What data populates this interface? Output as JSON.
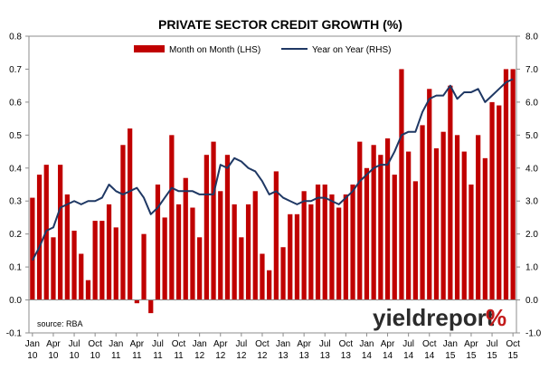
{
  "chart_data": {
    "type": "bar",
    "title": "PRIVATE SECTOR CREDIT GROWTH (%)",
    "source": "source: RBA",
    "legend_position": "top",
    "grid": false,
    "colors": {
      "bar": "#c00000",
      "line": "#1f3864"
    },
    "x_ticks": [
      {
        "label": "Jan",
        "year": "10"
      },
      {
        "label": "Apr",
        "year": "10"
      },
      {
        "label": "Jul",
        "year": "10"
      },
      {
        "label": "Oct",
        "year": "10"
      },
      {
        "label": "Jan",
        "year": "11"
      },
      {
        "label": "Apr",
        "year": "11"
      },
      {
        "label": "Jul",
        "year": "11"
      },
      {
        "label": "Oct",
        "year": "11"
      },
      {
        "label": "Jan",
        "year": "12"
      },
      {
        "label": "Apr",
        "year": "12"
      },
      {
        "label": "Jul",
        "year": "12"
      },
      {
        "label": "Oct",
        "year": "12"
      },
      {
        "label": "Jan",
        "year": "13"
      },
      {
        "label": "Apr",
        "year": "13"
      },
      {
        "label": "Jul",
        "year": "13"
      },
      {
        "label": "Oct",
        "year": "13"
      },
      {
        "label": "Jan",
        "year": "14"
      },
      {
        "label": "Apr",
        "year": "14"
      },
      {
        "label": "Jul",
        "year": "14"
      },
      {
        "label": "Oct",
        "year": "14"
      },
      {
        "label": "Jan",
        "year": "15"
      },
      {
        "label": "Apr",
        "year": "15"
      },
      {
        "label": "Jul",
        "year": "15"
      },
      {
        "label": "Oct",
        "year": "15"
      }
    ],
    "y_left": {
      "ylim": [
        -0.1,
        0.8
      ],
      "ticks": [
        "-0.1",
        "0.0",
        "0.1",
        "0.2",
        "0.3",
        "0.4",
        "0.5",
        "0.6",
        "0.7",
        "0.8"
      ]
    },
    "y_right": {
      "ylim": [
        -1.0,
        8.0
      ],
      "ticks": [
        "-1.0",
        "0.0",
        "1.0",
        "2.0",
        "3.0",
        "4.0",
        "5.0",
        "6.0",
        "7.0",
        "8.0"
      ]
    },
    "series": [
      {
        "name": "Month on Month (LHS)",
        "type": "bar",
        "axis": "left",
        "values": [
          0.31,
          0.38,
          0.41,
          0.19,
          0.41,
          0.32,
          0.21,
          0.14,
          0.06,
          0.24,
          0.24,
          0.29,
          0.22,
          0.47,
          0.52,
          -0.01,
          0.2,
          -0.04,
          0.35,
          0.25,
          0.5,
          0.29,
          0.37,
          0.28,
          0.19,
          0.44,
          0.48,
          0.33,
          0.44,
          0.29,
          0.19,
          0.29,
          0.33,
          0.14,
          0.09,
          0.39,
          0.16,
          0.26,
          0.26,
          0.33,
          0.29,
          0.35,
          0.35,
          0.32,
          0.28,
          0.32,
          0.35,
          0.48,
          0.4,
          0.47,
          0.44,
          0.49,
          0.38,
          0.7,
          0.45,
          0.36,
          0.53,
          0.64,
          0.46,
          0.51,
          0.65,
          0.5,
          0.45,
          0.35,
          0.5,
          0.43,
          0.6,
          0.59,
          0.7,
          0.7
        ]
      },
      {
        "name": "Year on Year (RHS)",
        "type": "line",
        "axis": "right",
        "values": [
          1.2,
          1.6,
          2.1,
          2.2,
          2.8,
          2.9,
          3.0,
          2.9,
          3.0,
          3.0,
          3.1,
          3.5,
          3.3,
          3.2,
          3.3,
          3.4,
          3.1,
          2.6,
          2.8,
          3.1,
          3.4,
          3.3,
          3.3,
          3.3,
          3.2,
          3.2,
          3.2,
          4.1,
          4.0,
          4.3,
          4.2,
          4.0,
          3.9,
          3.6,
          3.2,
          3.3,
          3.1,
          3.0,
          2.9,
          3.0,
          3.0,
          3.1,
          3.1,
          3.0,
          2.9,
          3.1,
          3.3,
          3.6,
          3.8,
          4.0,
          4.1,
          4.1,
          4.5,
          5.0,
          5.1,
          5.1,
          5.7,
          6.1,
          6.2,
          6.2,
          6.5,
          6.1,
          6.3,
          6.3,
          6.4,
          6.0,
          6.2,
          6.4,
          6.6,
          6.7
        ]
      }
    ]
  },
  "brand": {
    "name": "yieldreport",
    "symbol": "%"
  }
}
